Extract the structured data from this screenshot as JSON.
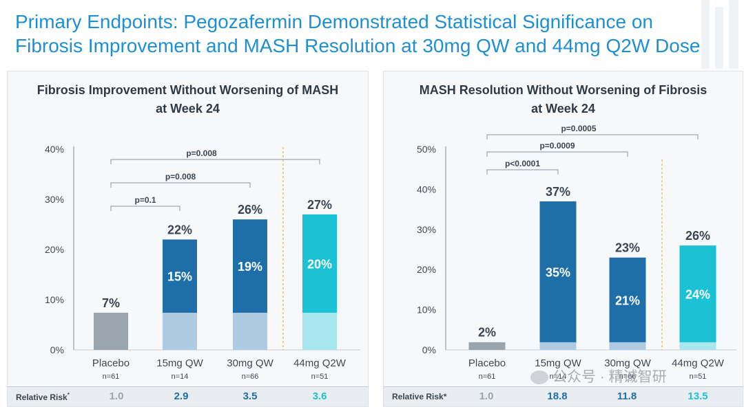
{
  "title_lines": [
    "Primary Endpoints: Pegozafermin Demonstrated Statistical Significance on",
    "Fibrosis Improvement and MASH Resolution at 30mg QW and 44mg Q2W Dose"
  ],
  "colors": {
    "title": "#1f8fd1",
    "placebo": "#9aa4ad",
    "dark_blue": "#1e6fa8",
    "light_blue": "#aecbe1",
    "cyan": "#1bc2d6",
    "light_cyan": "#a8e6ee",
    "separator": "#f0b429",
    "axis_text": "#404850"
  },
  "chart_data": [
    {
      "type": "bar",
      "title_lines": [
        "Fibrosis Improvement Without Worsening of MASH",
        "at Week 24"
      ],
      "ylim": [
        0,
        40
      ],
      "yticks": [
        0,
        10,
        20,
        30,
        40
      ],
      "tick_labels": [
        "0%",
        "10%",
        "20%",
        "30%",
        "40%"
      ],
      "categories": [
        "Placebo",
        "15mg QW",
        "30mg QW",
        "44mg Q2W"
      ],
      "n_labels": [
        "n=61",
        "n=14",
        "n=66",
        "n=51"
      ],
      "series": [
        {
          "name": "Placebo baseline",
          "values": [
            7.4,
            7.4,
            7.4,
            7.4
          ]
        },
        {
          "name": "Total",
          "values": [
            7,
            22,
            26,
            27
          ]
        }
      ],
      "total_labels": [
        "7%",
        "22%",
        "26%",
        "27%"
      ],
      "delta_labels": [
        "",
        "15%",
        "19%",
        "20%"
      ],
      "comparisons": [
        {
          "label": "p=0.1",
          "from": 0,
          "to": 1
        },
        {
          "label": "p=0.008",
          "from": 0,
          "to": 2
        },
        {
          "label": "p=0.008",
          "from": 0,
          "to": 3
        }
      ],
      "relative_risk_label": "Relative Risk",
      "relative_risk_marker": "*",
      "relative_risk": [
        "1.0",
        "2.9",
        "3.5",
        "3.6"
      ]
    },
    {
      "type": "bar",
      "title_lines": [
        "MASH Resolution Without Worsening of Fibrosis",
        "at Week 24"
      ],
      "ylim": [
        0,
        50
      ],
      "yticks": [
        0,
        10,
        20,
        30,
        40,
        50
      ],
      "tick_labels": [
        "0%",
        "10%",
        "20%",
        "30%",
        "40%",
        "50%"
      ],
      "categories": [
        "Placebo",
        "15mg QW",
        "30mg QW",
        "44mg Q2W"
      ],
      "n_labels": [
        "n=61",
        "n=14",
        "n=66",
        "n=51"
      ],
      "series": [
        {
          "name": "Placebo baseline",
          "values": [
            1.9,
            1.9,
            1.9,
            1.9
          ]
        },
        {
          "name": "Total",
          "values": [
            2,
            37,
            23,
            26
          ]
        }
      ],
      "total_labels": [
        "2%",
        "37%",
        "23%",
        "26%"
      ],
      "delta_labels": [
        "",
        "35%",
        "21%",
        "24%"
      ],
      "comparisons": [
        {
          "label": "p<0.0001",
          "from": 0,
          "to": 1
        },
        {
          "label": "p=0.0009",
          "from": 0,
          "to": 2
        },
        {
          "label": "p=0.0005",
          "from": 0,
          "to": 3
        }
      ],
      "relative_risk_label": "Relative Risk*",
      "relative_risk_marker": "",
      "relative_risk": [
        "1.0",
        "18.8",
        "11.8",
        "13.5"
      ]
    }
  ],
  "watermark": "公众号 · 精诚智研"
}
